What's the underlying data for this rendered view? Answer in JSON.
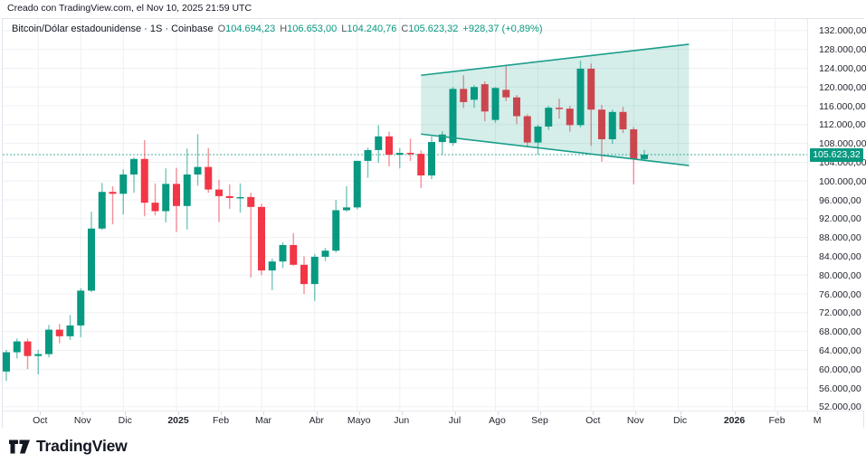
{
  "attribution": "Creado con TradingView.com, el Nov 10, 2025 21:59 UTC",
  "legend": {
    "title": "Bitcoin/Dólar estadounidense · 1S · Coinbase",
    "ohlc": [
      {
        "label": "O",
        "value": "104.694,23"
      },
      {
        "label": "H",
        "value": "106.653,00"
      },
      {
        "label": "L",
        "value": "104.240,76"
      },
      {
        "label": "C",
        "value": "105.623,32"
      }
    ],
    "change": "+928,37 (+0,89%)"
  },
  "price_axis": {
    "tick_values": [
      132000,
      128000,
      124000,
      120000,
      116000,
      112000,
      108000,
      104000,
      100000,
      96000,
      92000,
      88000,
      84000,
      80000,
      76000,
      72000,
      68000,
      64000,
      60000,
      56000,
      52000
    ],
    "last_price_label": "105.623,32"
  },
  "time_axis": {
    "ticks": [
      {
        "label": "Oct",
        "index": 3
      },
      {
        "label": "Nov",
        "index": 7
      },
      {
        "label": "Dic",
        "index": 11
      },
      {
        "label": "2025",
        "index": 16,
        "bold": true
      },
      {
        "label": "Feb",
        "index": 20
      },
      {
        "label": "Mar",
        "index": 24
      },
      {
        "label": "Abr",
        "index": 29
      },
      {
        "label": "Mayo",
        "index": 33
      },
      {
        "label": "Jun",
        "index": 37
      },
      {
        "label": "Jul",
        "index": 42
      },
      {
        "label": "Ago",
        "index": 46
      },
      {
        "label": "Sep",
        "index": 50
      },
      {
        "label": "Oct",
        "index": 55
      },
      {
        "label": "Nov",
        "index": 59
      },
      {
        "label": "Dic",
        "index": 63.2
      },
      {
        "label": "2026",
        "index": 68.3,
        "bold": true
      },
      {
        "label": "Feb",
        "index": 72.3
      },
      {
        "label": "M",
        "index": 76.1
      }
    ]
  },
  "footer": {
    "brand": "TradingView"
  },
  "colors": {
    "up": "#089981",
    "down": "#f23645",
    "accent": "#089981",
    "grid": "#eef0f4",
    "text": "#131722",
    "border": "#e0e3eb",
    "channel_fill": "rgba(8,153,129,0.17)",
    "channel_stroke": "#1b9e8b",
    "tag_bg": "#089981",
    "tag_text": "#ffffff"
  },
  "chart_data": {
    "type": "candlestick",
    "symbol": "Bitcoin/Dólar estadounidense",
    "interval": "1S",
    "exchange": "Coinbase",
    "last_price": 105623.32,
    "ylim": [
      50000,
      134000
    ],
    "grid": true,
    "columns": [
      "date",
      "open",
      "high",
      "low",
      "close"
    ],
    "candles": [
      [
        "2024-09-16",
        59500,
        64100,
        57500,
        63600
      ],
      [
        "2024-09-23",
        63600,
        66500,
        62300,
        65900
      ],
      [
        "2024-09-30",
        65900,
        66500,
        60000,
        62800
      ],
      [
        "2024-10-07",
        62800,
        64100,
        58900,
        63200
      ],
      [
        "2024-10-14",
        63200,
        69400,
        62500,
        68400
      ],
      [
        "2024-10-21",
        68400,
        69600,
        65500,
        67000
      ],
      [
        "2024-10-28",
        67000,
        71500,
        66200,
        69300
      ],
      [
        "2024-11-04",
        69300,
        77200,
        66800,
        76700
      ],
      [
        "2024-11-11",
        76700,
        93500,
        76400,
        89900
      ],
      [
        "2024-11-18",
        89900,
        99600,
        89600,
        97700
      ],
      [
        "2024-11-25",
        97700,
        98900,
        90800,
        97300
      ],
      [
        "2024-12-02",
        97300,
        102500,
        92900,
        101400
      ],
      [
        "2024-12-09",
        101400,
        105000,
        97500,
        104700
      ],
      [
        "2024-12-16",
        104700,
        108700,
        92500,
        95400
      ],
      [
        "2024-12-23",
        95400,
        99500,
        92700,
        93600
      ],
      [
        "2024-12-30",
        93600,
        102700,
        91200,
        99400
      ],
      [
        "2025-01-06",
        99400,
        102800,
        89200,
        94700
      ],
      [
        "2025-01-13",
        94700,
        106900,
        89700,
        101400
      ],
      [
        "2025-01-20",
        101400,
        110000,
        99000,
        103000
      ],
      [
        "2025-01-27",
        103000,
        107000,
        97500,
        98200
      ],
      [
        "2025-02-03",
        98200,
        100300,
        91300,
        96800
      ],
      [
        "2025-02-10",
        96800,
        99300,
        94100,
        96400
      ],
      [
        "2025-02-17",
        96400,
        99500,
        93300,
        96600
      ],
      [
        "2025-02-24",
        96600,
        97500,
        79500,
        94500
      ],
      [
        "2025-03-03",
        94500,
        95200,
        80000,
        81000
      ],
      [
        "2025-03-10",
        81000,
        83500,
        76800,
        82900
      ],
      [
        "2025-03-17",
        82900,
        87000,
        81500,
        86400
      ],
      [
        "2025-03-24",
        86400,
        88900,
        82000,
        82200
      ],
      [
        "2025-03-31",
        82200,
        84000,
        76000,
        78100
      ],
      [
        "2025-04-07",
        78100,
        84500,
        74500,
        83900
      ],
      [
        "2025-04-14",
        83900,
        85800,
        83000,
        85200
      ],
      [
        "2025-04-21",
        85200,
        96000,
        84800,
        93800
      ],
      [
        "2025-04-28",
        93800,
        98900,
        93500,
        94400
      ],
      [
        "2025-05-05",
        94400,
        104300,
        94000,
        104300
      ],
      [
        "2025-05-12",
        104300,
        107100,
        100700,
        106600
      ],
      [
        "2025-05-19",
        106600,
        111900,
        103900,
        109500
      ],
      [
        "2025-05-26",
        109500,
        110500,
        103100,
        105600
      ],
      [
        "2025-06-02",
        105600,
        107000,
        102700,
        106000
      ],
      [
        "2025-06-09",
        106000,
        109000,
        104300,
        105800
      ],
      [
        "2025-06-16",
        105800,
        106500,
        98500,
        101200
      ],
      [
        "2025-06-23",
        101200,
        109500,
        100400,
        108300
      ],
      [
        "2025-06-30",
        108300,
        110600,
        105600,
        109900
      ],
      [
        "2025-07-07",
        108100,
        120000,
        107500,
        119600
      ],
      [
        "2025-07-14",
        119600,
        122500,
        115500,
        116800
      ],
      [
        "2025-07-21",
        117300,
        120400,
        115600,
        120000
      ],
      [
        "2025-07-28",
        120600,
        121200,
        112700,
        114800
      ],
      [
        "2025-08-04",
        113000,
        120000,
        112400,
        119800
      ],
      [
        "2025-08-11",
        119400,
        124500,
        117000,
        117800
      ],
      [
        "2025-08-18",
        117800,
        118300,
        112100,
        113800
      ],
      [
        "2025-08-25",
        113800,
        114200,
        107200,
        108200
      ],
      [
        "2025-09-01",
        108200,
        112000,
        105600,
        111600
      ],
      [
        "2025-09-08",
        111600,
        116000,
        110900,
        115600
      ],
      [
        "2025-09-15",
        115600,
        117500,
        113300,
        115400
      ],
      [
        "2025-09-22",
        115400,
        116000,
        110500,
        111900
      ],
      [
        "2025-09-29",
        111900,
        125600,
        111400,
        123900
      ],
      [
        "2025-10-06",
        123900,
        125000,
        107500,
        115200
      ],
      [
        "2025-10-13",
        115200,
        116200,
        104100,
        108900
      ],
      [
        "2025-10-20",
        108900,
        115200,
        107900,
        114700
      ],
      [
        "2025-10-27",
        114700,
        115800,
        110200,
        111000
      ],
      [
        "2025-11-03",
        111000,
        111500,
        99300,
        104700
      ],
      [
        "2025-11-10",
        104694.23,
        106653.0,
        104240.76,
        105623.32
      ]
    ],
    "channel": {
      "start_index": 39,
      "end_index": 64.2,
      "upper_start": 122500,
      "upper_end": 129100,
      "lower_start": 110000,
      "lower_end": 103300
    }
  }
}
